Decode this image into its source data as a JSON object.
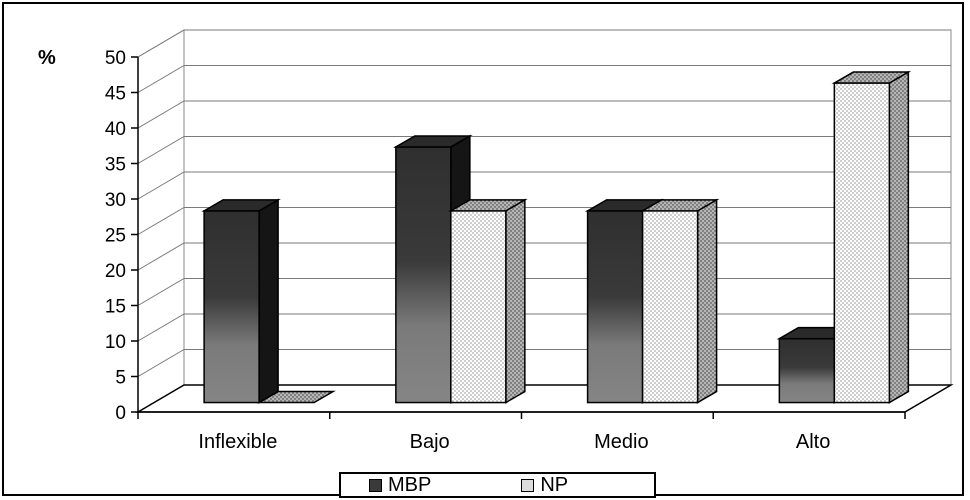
{
  "chart_data": {
    "type": "bar",
    "ylabel": "%",
    "ylim": [
      0,
      50
    ],
    "yticks": [
      0,
      5,
      10,
      15,
      20,
      25,
      30,
      35,
      40,
      45,
      50
    ],
    "categories": [
      "Inflexible",
      "Bajo",
      "Medio",
      "Alto"
    ],
    "series": [
      {
        "name": "MBP",
        "values": [
          27,
          36,
          27,
          9
        ]
      },
      {
        "name": "NP",
        "values": [
          0,
          27,
          27,
          45
        ]
      }
    ],
    "grid": true,
    "legend_position": "bottom",
    "colors": {
      "MBP": "#3a3a3a",
      "MBP_light": "#777777",
      "NP": "#ffffff",
      "NP_side": "#9a9a9a"
    }
  }
}
